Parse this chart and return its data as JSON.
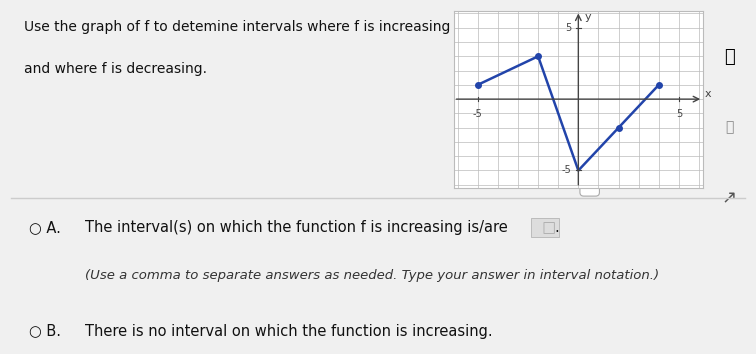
{
  "graph_points": [
    [
      -5,
      1
    ],
    [
      -2,
      3
    ],
    [
      0,
      -5
    ],
    [
      2,
      -2
    ],
    [
      4,
      1
    ]
  ],
  "dot_points": [
    [
      -5,
      1
    ],
    [
      -2,
      3
    ],
    [
      2,
      -2
    ],
    [
      4,
      1
    ]
  ],
  "line_color": "#2244aa",
  "dot_color": "#2244aa",
  "xlim": [
    -6.2,
    6.2
  ],
  "ylim": [
    -6.2,
    6.2
  ],
  "xtick_labels": [
    "-5",
    "5"
  ],
  "xtick_vals": [
    -5,
    5
  ],
  "ytick_labels": [
    "5",
    "-5"
  ],
  "ytick_vals": [
    5,
    -5
  ],
  "xlabel": "x",
  "ylabel": "y",
  "grid_color": "#bbbbbb",
  "axis_color": "#444444",
  "background_color": "#f0f0f0",
  "panel_color": "#ffffff",
  "title_line1": "Use the graph of f to detemine intervals where f is increasing",
  "title_line2": "and where f is decreasing.",
  "option_A_prefix": "○ A.",
  "option_A_text": "The interval(s) on which the function f is increasing is/are",
  "option_A_sub": "(Use a comma to separate answers as needed. Type your answer in interval notation.)",
  "option_B_prefix": "○ B.",
  "option_B_text": "There is no interval on which the function is increasing.",
  "dot_size": 4,
  "separator_color": "#cccccc",
  "more_button_text": "...",
  "left_bar_color": "#888888"
}
